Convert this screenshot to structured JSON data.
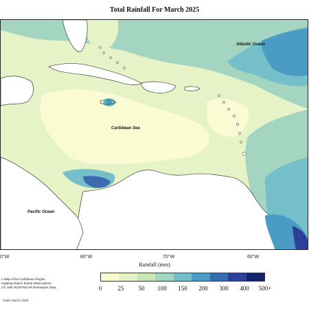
{
  "title": "Total Rainfall For March 2025",
  "ocean_labels": {
    "atlantic": "Atlantic Ocean",
    "caribbean": "Caribbean Sea",
    "pacific": "Pacific Ocean"
  },
  "longitude_ticks": [
    "0°W",
    "80°W",
    "70°W",
    "60°W"
  ],
  "axis_title": "Rainfall (mm)",
  "legend": {
    "labels": [
      "0",
      "25",
      "50",
      "100",
      "150",
      "200",
      "300",
      "400",
      "500+"
    ],
    "colors": [
      "#fbfbd3",
      "#e6f3c6",
      "#c9e6b6",
      "#a4d5c0",
      "#74bfc9",
      "#4a9cc4",
      "#3a6bb1",
      "#2e3f99",
      "#14236b"
    ]
  },
  "description_lines": [
    "n Map of the Caribbean Region",
    "regating station based observations,",
    "CF, with NCEP/NCAR Reanalysis Data."
  ],
  "copyright": "CIMH March 2025",
  "colors": {
    "land": "#ffffff",
    "coast": "#1a1a1a",
    "frame": "#222222"
  }
}
